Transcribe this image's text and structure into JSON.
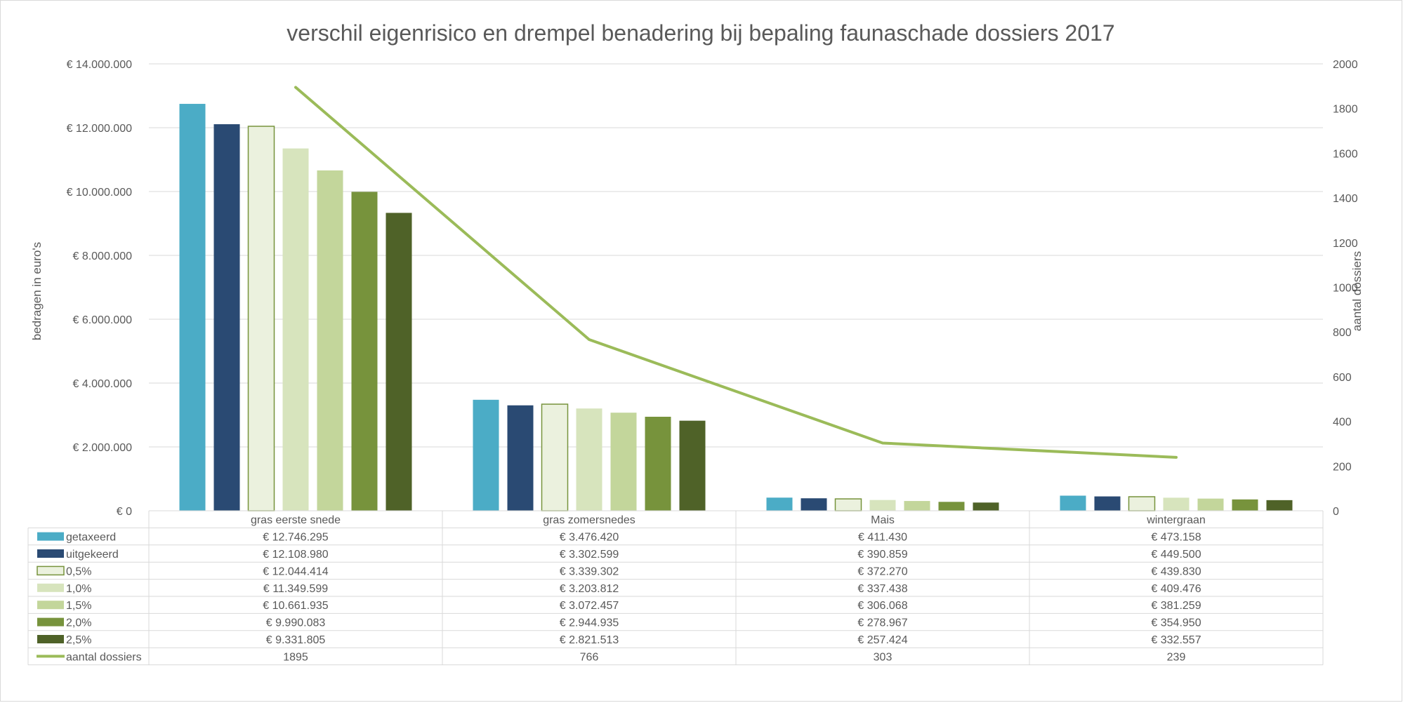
{
  "chart_data": {
    "type": "bar",
    "title": "verschil eigenrisico en drempel benadering bij bepaling faunaschade dossiers 2017",
    "ylabel": "bedragen in euro's",
    "y2label": "aantal dossiers",
    "ylim": [
      0,
      14000000
    ],
    "y2lim": [
      0,
      2000
    ],
    "yticks": [
      0,
      2000000,
      4000000,
      6000000,
      8000000,
      10000000,
      12000000,
      14000000
    ],
    "ytick_labels": [
      "€ 0",
      "€ 2.000.000",
      "€ 4.000.000",
      "€ 6.000.000",
      "€ 8.000.000",
      "€ 10.000.000",
      "€ 12.000.000",
      "€ 14.000.000"
    ],
    "y2ticks": [
      0,
      200,
      400,
      600,
      800,
      1000,
      1200,
      1400,
      1600,
      1800,
      2000
    ],
    "y2tick_labels": [
      "0",
      "200",
      "400",
      "600",
      "800",
      "1000",
      "1200",
      "1400",
      "1600",
      "1800",
      "2000"
    ],
    "grid": true,
    "legend": "table-below",
    "categories": [
      "gras eerste snede",
      "gras zomersnedes",
      "Mais",
      "wintergraan"
    ],
    "series": [
      {
        "name": "getaxeerd",
        "type": "bar",
        "color": "#4bacc6",
        "values": [
          12746295,
          3476420,
          411430,
          473158
        ],
        "labels": [
          "€ 12.746.295",
          "€ 3.476.420",
          "€ 411.430",
          "€ 473.158"
        ]
      },
      {
        "name": "uitgekeerd",
        "type": "bar",
        "color": "#2a4a73",
        "values": [
          12108980,
          3302599,
          390859,
          449500
        ],
        "labels": [
          "€ 12.108.980",
          "€ 3.302.599",
          "€ 390.859",
          "€ 449.500"
        ]
      },
      {
        "name": "0,5%",
        "type": "bar",
        "color": "#ebf1de",
        "stroke": "#77933c",
        "values": [
          12044414,
          3339302,
          372270,
          439830
        ],
        "labels": [
          "€ 12.044.414",
          "€ 3.339.302",
          "€ 372.270",
          "€ 439.830"
        ]
      },
      {
        "name": "1,0%",
        "type": "bar",
        "color": "#d7e4bd",
        "values": [
          11349599,
          3203812,
          337438,
          409476
        ],
        "labels": [
          "€ 11.349.599",
          "€ 3.203.812",
          "€ 337.438",
          "€ 409.476"
        ]
      },
      {
        "name": "1,5%",
        "type": "bar",
        "color": "#c3d69b",
        "values": [
          10661935,
          3072457,
          306068,
          381259
        ],
        "labels": [
          "€ 10.661.935",
          "€ 3.072.457",
          "€ 306.068",
          "€ 381.259"
        ]
      },
      {
        "name": "2,0%",
        "type": "bar",
        "color": "#77933c",
        "values": [
          9990083,
          2944935,
          278967,
          354950
        ],
        "labels": [
          "€ 9.990.083",
          "€ 2.944.935",
          "€ 278.967",
          "€ 354.950"
        ]
      },
      {
        "name": "2,5%",
        "type": "bar",
        "color": "#4f6228",
        "values": [
          9331805,
          2821513,
          257424,
          332557
        ],
        "labels": [
          "€ 9.331.805",
          "€ 2.821.513",
          "€ 257.424",
          "€ 332.557"
        ]
      },
      {
        "name": "aantal dossiers",
        "type": "line",
        "axis": "secondary",
        "color": "#9bbb59",
        "values": [
          1895,
          766,
          303,
          239
        ],
        "labels": [
          "1895",
          "766",
          "303",
          "239"
        ]
      }
    ]
  }
}
